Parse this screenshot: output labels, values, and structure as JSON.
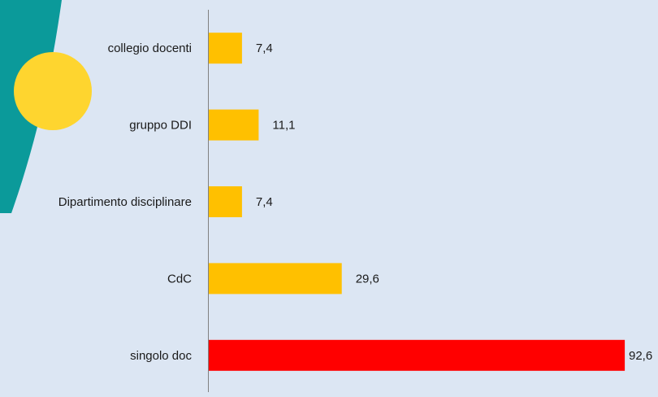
{
  "colors": {
    "background": "#dce6f3",
    "teal_shape": "#0b9a9a",
    "yellow_circle": "#fed52f",
    "bar_default": "#ffc000",
    "bar_highlight": "#ff0000",
    "axis": "#808080"
  },
  "chart_data": {
    "type": "bar",
    "orientation": "horizontal",
    "categories": [
      "collegio docenti",
      "gruppo DDI",
      "Dipartimento disciplinare",
      "CdC",
      "singolo doc"
    ],
    "values": [
      7.4,
      11.1,
      7.4,
      29.6,
      92.6
    ],
    "value_labels": [
      "7,4",
      "11,1",
      "7,4",
      "29,6",
      "92,6"
    ],
    "highlight_index": 4,
    "xlim": [
      0,
      100
    ],
    "grid": false,
    "legend": "none"
  }
}
